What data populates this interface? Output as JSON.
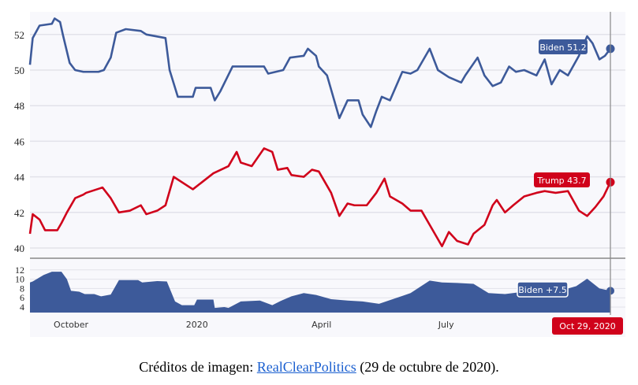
{
  "chart_data": [
    {
      "type": "line",
      "ylim": [
        39.5,
        53.2
      ],
      "yticks": [
        40,
        42,
        44,
        46,
        48,
        50,
        52
      ],
      "grid": true,
      "colors": {
        "Biden": "#3d5a9a",
        "Trump": "#d0021b"
      },
      "series": [
        {
          "name": "Biden",
          "label": "Biden 51.2",
          "points": [
            [
              "2019-09-01",
              50.3
            ],
            [
              "2019-09-03",
              51.8
            ],
            [
              "2019-09-08",
              52.5
            ],
            [
              "2019-09-17",
              52.6
            ],
            [
              "2019-09-19",
              52.9
            ],
            [
              "2019-09-23",
              52.7
            ],
            [
              "2019-09-25",
              52.0
            ],
            [
              "2019-09-30",
              50.4
            ],
            [
              "2019-10-04",
              50.0
            ],
            [
              "2019-10-10",
              49.9
            ],
            [
              "2019-10-21",
              49.9
            ],
            [
              "2019-10-25",
              50.0
            ],
            [
              "2019-10-30",
              50.7
            ],
            [
              "2019-11-03",
              52.1
            ],
            [
              "2019-11-10",
              52.3
            ],
            [
              "2019-11-21",
              52.2
            ],
            [
              "2019-11-25",
              52.0
            ],
            [
              "2019-12-09",
              51.8
            ],
            [
              "2019-12-12",
              50.0
            ],
            [
              "2019-12-18",
              48.5
            ],
            [
              "2019-12-29",
              48.5
            ],
            [
              "2019-12-31",
              49.0
            ],
            [
              "2020-01-11",
              49.0
            ],
            [
              "2020-01-14",
              48.3
            ],
            [
              "2020-01-18",
              48.8
            ],
            [
              "2020-01-27",
              50.2
            ],
            [
              "2020-02-19",
              50.2
            ],
            [
              "2020-02-22",
              49.8
            ],
            [
              "2020-03-04",
              50.0
            ],
            [
              "2020-03-09",
              50.7
            ],
            [
              "2020-03-19",
              50.8
            ],
            [
              "2020-03-22",
              51.2
            ],
            [
              "2020-03-28",
              50.8
            ],
            [
              "2020-03-30",
              50.2
            ],
            [
              "2020-04-05",
              49.7
            ],
            [
              "2020-04-14",
              47.3
            ],
            [
              "2020-04-20",
              48.3
            ],
            [
              "2020-04-28",
              48.3
            ],
            [
              "2020-05-01",
              47.5
            ],
            [
              "2020-05-07",
              46.8
            ],
            [
              "2020-05-11",
              47.7
            ],
            [
              "2020-05-15",
              48.5
            ],
            [
              "2020-05-21",
              48.3
            ],
            [
              "2020-05-30",
              49.9
            ],
            [
              "2020-06-05",
              49.8
            ],
            [
              "2020-06-10",
              50.0
            ],
            [
              "2020-06-19",
              51.2
            ],
            [
              "2020-06-25",
              50.0
            ],
            [
              "2020-07-03",
              49.6
            ],
            [
              "2020-07-12",
              49.3
            ],
            [
              "2020-07-15",
              49.7
            ],
            [
              "2020-07-24",
              50.7
            ],
            [
              "2020-07-29",
              49.7
            ],
            [
              "2020-08-04",
              49.1
            ],
            [
              "2020-08-10",
              49.3
            ],
            [
              "2020-08-16",
              50.2
            ],
            [
              "2020-08-21",
              49.9
            ],
            [
              "2020-08-27",
              50.0
            ],
            [
              "2020-09-05",
              49.7
            ],
            [
              "2020-09-11",
              50.6
            ],
            [
              "2020-09-16",
              49.2
            ],
            [
              "2020-09-22",
              50.0
            ],
            [
              "2020-09-28",
              49.7
            ],
            [
              "2020-10-06",
              50.8
            ],
            [
              "2020-10-12",
              51.9
            ],
            [
              "2020-10-16",
              51.5
            ],
            [
              "2020-10-21",
              50.6
            ],
            [
              "2020-10-25",
              50.8
            ],
            [
              "2020-10-29",
              51.2
            ]
          ]
        },
        {
          "name": "Trump",
          "label": "Trump 43.7",
          "points": [
            [
              "2019-09-01",
              40.8
            ],
            [
              "2019-09-03",
              41.9
            ],
            [
              "2019-09-08",
              41.6
            ],
            [
              "2019-09-12",
              41.0
            ],
            [
              "2019-09-21",
              41.0
            ],
            [
              "2019-09-24",
              41.4
            ],
            [
              "2019-09-28",
              42.0
            ],
            [
              "2019-10-04",
              42.8
            ],
            [
              "2019-10-10",
              43.0
            ],
            [
              "2019-10-12",
              43.1
            ],
            [
              "2019-10-24",
              43.4
            ],
            [
              "2019-10-30",
              42.8
            ],
            [
              "2019-11-05",
              42.0
            ],
            [
              "2019-11-13",
              42.1
            ],
            [
              "2019-11-21",
              42.4
            ],
            [
              "2019-11-25",
              41.9
            ],
            [
              "2019-12-03",
              42.1
            ],
            [
              "2019-12-09",
              42.4
            ],
            [
              "2019-12-15",
              44.0
            ],
            [
              "2019-12-29",
              43.3
            ],
            [
              "2020-01-13",
              44.2
            ],
            [
              "2020-01-24",
              44.6
            ],
            [
              "2020-01-30",
              45.4
            ],
            [
              "2020-02-02",
              44.8
            ],
            [
              "2020-02-10",
              44.6
            ],
            [
              "2020-02-19",
              45.6
            ],
            [
              "2020-02-25",
              45.4
            ],
            [
              "2020-02-29",
              44.4
            ],
            [
              "2020-03-07",
              44.5
            ],
            [
              "2020-03-10",
              44.1
            ],
            [
              "2020-03-19",
              44.0
            ],
            [
              "2020-03-25",
              44.4
            ],
            [
              "2020-03-30",
              44.3
            ],
            [
              "2020-04-08",
              43.1
            ],
            [
              "2020-04-14",
              41.8
            ],
            [
              "2020-04-20",
              42.5
            ],
            [
              "2020-04-25",
              42.4
            ],
            [
              "2020-05-04",
              42.4
            ],
            [
              "2020-05-11",
              43.1
            ],
            [
              "2020-05-17",
              43.9
            ],
            [
              "2020-05-21",
              42.9
            ],
            [
              "2020-05-30",
              42.5
            ],
            [
              "2020-06-05",
              42.1
            ],
            [
              "2020-06-13",
              42.1
            ],
            [
              "2020-06-19",
              41.3
            ],
            [
              "2020-06-28",
              40.1
            ],
            [
              "2020-07-03",
              40.9
            ],
            [
              "2020-07-09",
              40.4
            ],
            [
              "2020-07-17",
              40.2
            ],
            [
              "2020-07-21",
              40.8
            ],
            [
              "2020-07-29",
              41.3
            ],
            [
              "2020-08-04",
              42.4
            ],
            [
              "2020-08-07",
              42.7
            ],
            [
              "2020-08-13",
              42.0
            ],
            [
              "2020-08-19",
              42.4
            ],
            [
              "2020-08-27",
              42.9
            ],
            [
              "2020-09-05",
              43.1
            ],
            [
              "2020-09-11",
              43.2
            ],
            [
              "2020-09-19",
              43.1
            ],
            [
              "2020-09-28",
              43.2
            ],
            [
              "2020-10-06",
              42.1
            ],
            [
              "2020-10-12",
              41.8
            ],
            [
              "2020-10-18",
              42.3
            ],
            [
              "2020-10-24",
              42.9
            ],
            [
              "2020-10-29",
              43.7
            ]
          ]
        }
      ]
    },
    {
      "type": "area",
      "yticks": [
        4,
        6,
        8,
        10,
        12
      ],
      "color": "#3d5a9a",
      "series": [
        {
          "name": "Biden",
          "label": "Biden +7.5",
          "points": [
            [
              "2019-09-01",
              9.3
            ],
            [
              "2019-09-03",
              9.5
            ],
            [
              "2019-09-11",
              10.9
            ],
            [
              "2019-09-17",
              11.6
            ],
            [
              "2019-09-24",
              11.6
            ],
            [
              "2019-09-28",
              10.0
            ],
            [
              "2019-10-01",
              7.5
            ],
            [
              "2019-10-07",
              7.3
            ],
            [
              "2019-10-11",
              6.8
            ],
            [
              "2019-10-18",
              6.8
            ],
            [
              "2019-10-23",
              6.3
            ],
            [
              "2019-10-30",
              6.7
            ],
            [
              "2019-11-05",
              9.8
            ],
            [
              "2019-11-19",
              9.8
            ],
            [
              "2019-11-22",
              9.3
            ],
            [
              "2019-12-03",
              9.6
            ],
            [
              "2019-12-10",
              9.5
            ],
            [
              "2019-12-16",
              5.2
            ],
            [
              "2019-12-21",
              4.4
            ],
            [
              "2019-12-30",
              4.4
            ],
            [
              "2020-01-01",
              5.6
            ],
            [
              "2020-01-13",
              5.6
            ],
            [
              "2020-01-14",
              3.8
            ],
            [
              "2020-01-21",
              4.0
            ],
            [
              "2020-01-24",
              3.8
            ],
            [
              "2020-02-02",
              5.2
            ],
            [
              "2020-02-16",
              5.4
            ],
            [
              "2020-02-25",
              4.4
            ],
            [
              "2020-03-02",
              5.3
            ],
            [
              "2020-03-10",
              6.3
            ],
            [
              "2020-03-19",
              7.0
            ],
            [
              "2020-03-28",
              6.6
            ],
            [
              "2020-04-08",
              5.7
            ],
            [
              "2020-04-20",
              5.4
            ],
            [
              "2020-05-01",
              5.2
            ],
            [
              "2020-05-13",
              4.7
            ],
            [
              "2020-05-24",
              5.8
            ],
            [
              "2020-06-05",
              7.0
            ],
            [
              "2020-06-19",
              9.7
            ],
            [
              "2020-06-28",
              9.3
            ],
            [
              "2020-07-09",
              9.2
            ],
            [
              "2020-07-21",
              9.0
            ],
            [
              "2020-08-01",
              7.0
            ],
            [
              "2020-08-13",
              6.8
            ],
            [
              "2020-08-24",
              7.2
            ],
            [
              "2020-09-11",
              6.5
            ],
            [
              "2020-09-22",
              7.5
            ],
            [
              "2020-10-04",
              8.5
            ],
            [
              "2020-10-12",
              10.1
            ],
            [
              "2020-10-21",
              8.0
            ],
            [
              "2020-10-29",
              7.5
            ]
          ]
        }
      ]
    }
  ],
  "x_axis": {
    "ticks": [
      {
        "date": "2019-10-01",
        "label": "October"
      },
      {
        "date": "2020-01-01",
        "label": "2020"
      },
      {
        "date": "2020-04-01",
        "label": "April"
      },
      {
        "date": "2020-07-01",
        "label": "July"
      }
    ],
    "cursor_date": "2020-10-29",
    "cursor_label": "Oct 29, 2020",
    "cursor_color": "#d0021b"
  },
  "caption": {
    "prefix": "Créditos de imagen: ",
    "link": "RealClearPolitics",
    "suffix": " (29 de octubre de 2020)."
  }
}
